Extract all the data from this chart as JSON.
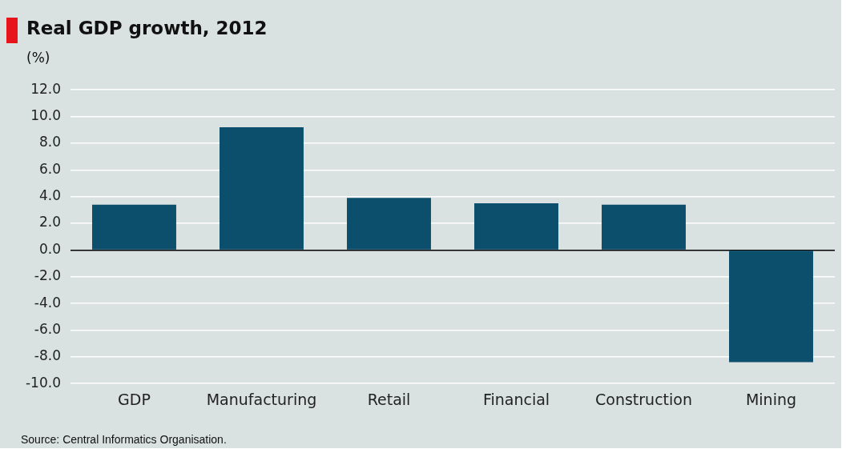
{
  "chart_data": {
    "type": "bar",
    "title": "Real GDP growth, 2012",
    "subtitle": "(%)",
    "categories": [
      "GDP",
      "Manufacturing",
      "Retail",
      "Financial",
      "Construction",
      "Mining"
    ],
    "values": [
      3.4,
      9.2,
      3.9,
      3.5,
      3.4,
      -8.4
    ],
    "color": "#0b4f6c",
    "ylim": [
      -10,
      12
    ],
    "yticks": [
      {
        "value": -10,
        "label": "-10.0"
      },
      {
        "value": -8,
        "label": "-8.0"
      },
      {
        "value": -6,
        "label": "-6.0"
      },
      {
        "value": -4,
        "label": "-4.0"
      },
      {
        "value": -2,
        "label": "-2.0"
      },
      {
        "value": 0,
        "label": "0.0"
      },
      {
        "value": 2,
        "label": "2.0"
      },
      {
        "value": 4,
        "label": "4.0"
      },
      {
        "value": 6,
        "label": "6.0"
      },
      {
        "value": 8,
        "label": "8.0"
      },
      {
        "value": 10,
        "label": "10.0"
      },
      {
        "value": 12,
        "label": "12.0"
      }
    ],
    "grid": "y",
    "annotations": [
      "Source: Central Informatics Organisation."
    ]
  }
}
